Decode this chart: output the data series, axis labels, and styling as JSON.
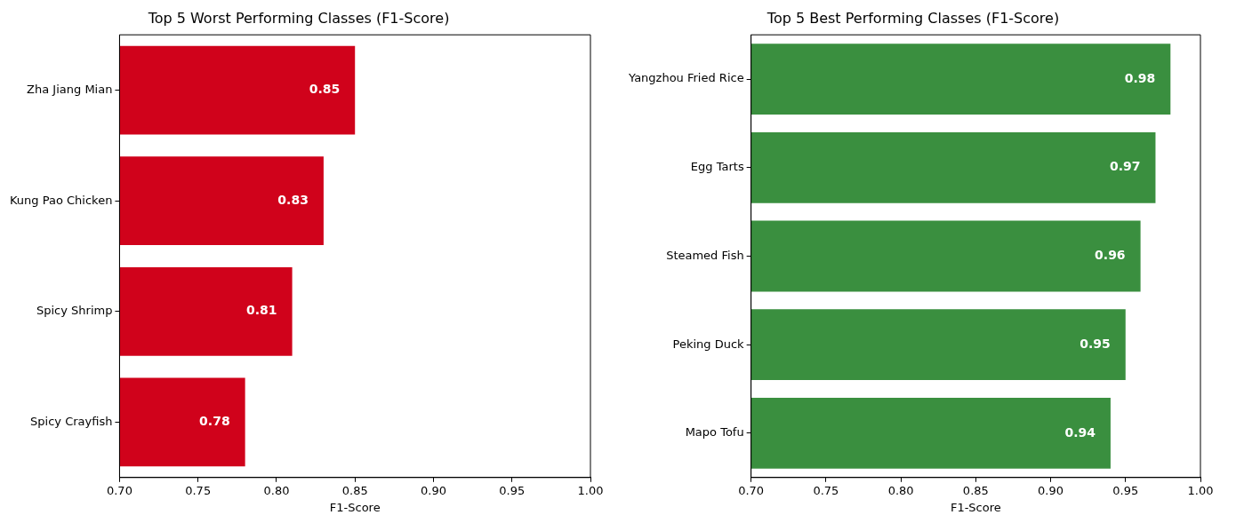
{
  "chart_data": [
    {
      "type": "bar",
      "orientation": "horizontal",
      "title": "Top 5 Worst Performing Classes (F1-Score)",
      "xlabel": "F1-Score",
      "categories": [
        "Zha Jiang Mian",
        "Kung Pao Chicken",
        "Spicy Shrimp",
        "Spicy Crayfish"
      ],
      "values": [
        0.85,
        0.83,
        0.81,
        0.78
      ],
      "color": "#d0021b",
      "xlim": [
        0.7,
        1.0
      ],
      "xticks": [
        {
          "value": 0.7,
          "label": "0.70"
        },
        {
          "value": 0.75,
          "label": "0.75"
        },
        {
          "value": 0.8,
          "label": "0.80"
        },
        {
          "value": 0.85,
          "label": "0.85"
        },
        {
          "value": 0.9,
          "label": "0.90"
        },
        {
          "value": 0.95,
          "label": "0.95"
        },
        {
          "value": 1.0,
          "label": "1.00"
        }
      ],
      "data_labels": true
    },
    {
      "type": "bar",
      "orientation": "horizontal",
      "title": "Top 5 Best Performing Classes (F1-Score)",
      "xlabel": "F1-Score",
      "categories": [
        "Yangzhou Fried Rice",
        "Egg Tarts",
        "Steamed Fish",
        "Peking Duck",
        "Mapo Tofu"
      ],
      "values": [
        0.98,
        0.97,
        0.96,
        0.95,
        0.94
      ],
      "color": "#3a8f3f",
      "xlim": [
        0.7,
        1.0
      ],
      "xticks": [
        {
          "value": 0.7,
          "label": "0.70"
        },
        {
          "value": 0.75,
          "label": "0.75"
        },
        {
          "value": 0.8,
          "label": "0.80"
        },
        {
          "value": 0.85,
          "label": "0.85"
        },
        {
          "value": 0.9,
          "label": "0.90"
        },
        {
          "value": 0.95,
          "label": "0.95"
        },
        {
          "value": 1.0,
          "label": "1.00"
        }
      ],
      "data_labels": true
    }
  ]
}
